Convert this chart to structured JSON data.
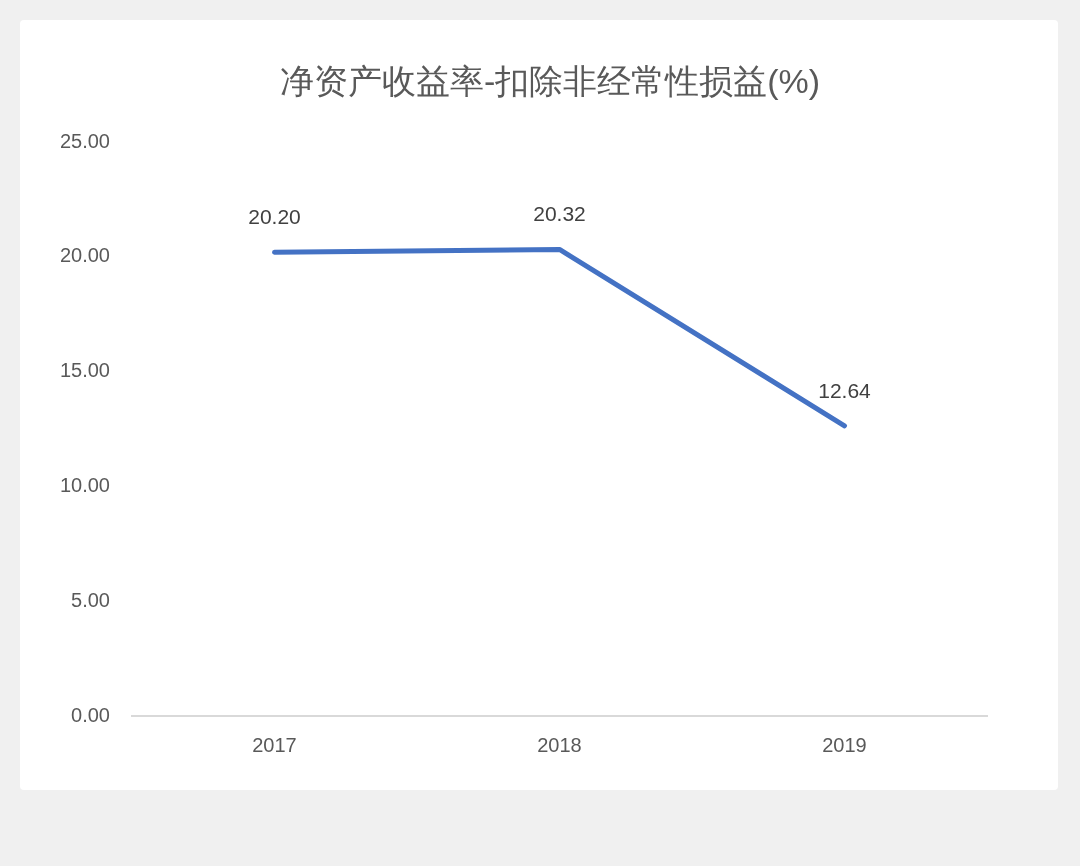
{
  "chart_data": {
    "type": "line",
    "title": "净资产收益率-扣除非经常性损益(%)",
    "categories": [
      "2017",
      "2018",
      "2019"
    ],
    "series": [
      {
        "color": "#4472c4",
        "values": [
          20.2,
          20.32,
          12.64
        ],
        "value_labels": [
          "20.20",
          "20.32",
          "12.64"
        ]
      }
    ],
    "ylim": [
      0,
      25
    ],
    "yticks": [
      {
        "value": 0,
        "label": "0.00"
      },
      {
        "value": 5,
        "label": "5.00"
      },
      {
        "value": 10,
        "label": "10.00"
      },
      {
        "value": 15,
        "label": "15.00"
      },
      {
        "value": 20,
        "label": "20.00"
      },
      {
        "value": 25,
        "label": "25.00"
      }
    ],
    "marker": "none",
    "line_style": "solid"
  }
}
